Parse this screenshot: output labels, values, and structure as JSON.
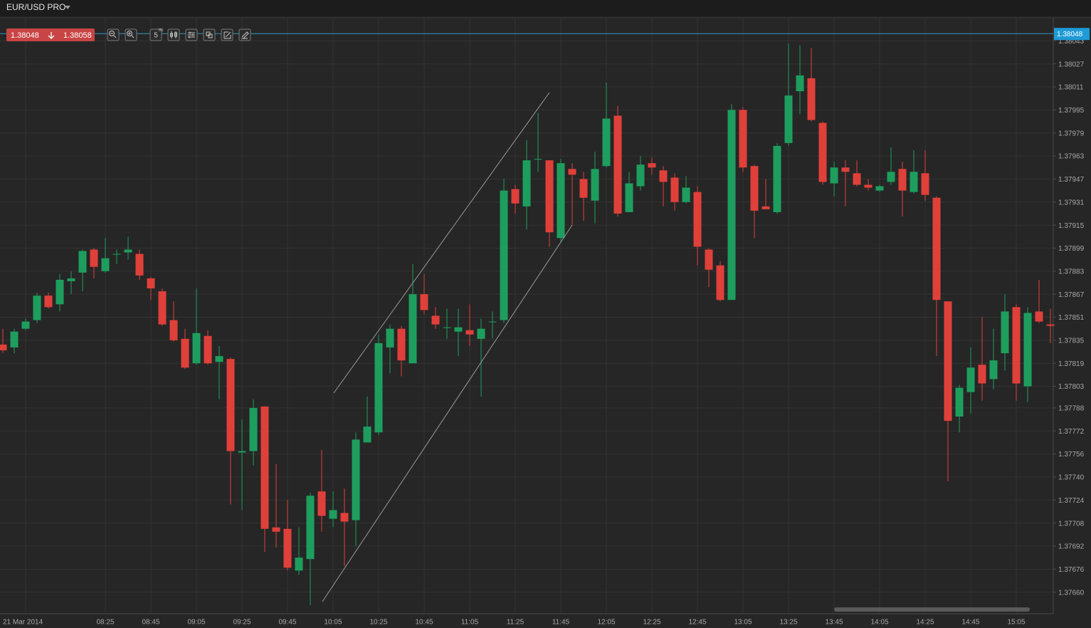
{
  "toolbar": {
    "interval": "5",
    "unit": "m"
  },
  "chart_data": {
    "type": "candlestick",
    "title": "EUR/USD PRO",
    "bid": 1.38048,
    "ask": 1.38058,
    "last_price": 1.38048,
    "up_color": "#1e9e5e",
    "down_color": "#e0403a",
    "grid": true,
    "categories": [
      null,
      null,
      "21 Mar 2014",
      null,
      null,
      null,
      null,
      null,
      null,
      "08:25",
      null,
      null,
      null,
      "08:45",
      null,
      null,
      null,
      "09:05",
      null,
      null,
      null,
      "09:25",
      null,
      null,
      null,
      "09:45",
      null,
      null,
      null,
      "10:05",
      null,
      null,
      null,
      "10:25",
      null,
      null,
      null,
      "10:45",
      null,
      null,
      null,
      "11:05",
      null,
      null,
      null,
      "11:25",
      null,
      null,
      null,
      "11:45",
      null,
      null,
      null,
      "12:05",
      null,
      null,
      null,
      "12:25",
      null,
      null,
      null,
      "12:45",
      null,
      null,
      null,
      "13:05",
      null,
      null,
      null,
      "13:25",
      null,
      null,
      null,
      "13:45",
      null,
      null,
      null,
      "14:05",
      null,
      null,
      null,
      "14:25",
      null,
      null,
      null,
      "14:45",
      null,
      null,
      null,
      "15:05",
      null,
      null,
      null
    ],
    "open": [
      1.37832,
      1.3783,
      1.37843,
      1.37849,
      1.37866,
      1.3786,
      1.37876,
      1.37882,
      1.37898,
      1.37883,
      1.37895,
      1.37896,
      1.37895,
      1.37878,
      1.37869,
      1.37849,
      1.37836,
      1.37819,
      1.37838,
      1.3782,
      1.37822,
      1.37757,
      1.37758,
      1.37789,
      1.37705,
      1.37704,
      1.37675,
      1.37683,
      1.3773,
      1.37711,
      1.37715,
      1.3771,
      1.37764,
      1.37771,
      1.3783,
      1.37843,
      1.37819,
      1.37867,
      1.37852,
      1.37844,
      1.37841,
      1.37842,
      1.37836,
      1.37848,
      1.37849,
      1.3794,
      1.37928,
      1.37961,
      1.3796,
      1.37906,
      1.37954,
      1.37947,
      1.37932,
      1.37956,
      1.37991,
      1.37924,
      1.37942,
      1.37958,
      1.37953,
      1.37948,
      1.37931,
      1.37938,
      1.37898,
      1.37887,
      1.37863,
      1.37995,
      1.37956,
      1.37928,
      1.37924,
      1.37972,
      1.38008,
      1.38017,
      1.37986,
      1.37944,
      1.37955,
      1.37951,
      1.37943,
      1.37939,
      1.37945,
      1.37954,
      1.37938,
      1.37951,
      1.37934,
      1.37862,
      1.37782,
      1.37799,
      1.37818,
      1.37808,
      1.37826,
      1.37858,
      1.37803,
      1.37855,
      1.37846
    ],
    "high": [
      1.37843,
      1.37843,
      1.3785,
      1.37868,
      1.37868,
      1.37881,
      1.37883,
      1.37898,
      1.37899,
      1.37906,
      1.37898,
      1.37907,
      1.37898,
      1.37879,
      1.37871,
      1.37862,
      1.37843,
      1.37871,
      1.37842,
      1.37831,
      1.37823,
      1.3778,
      1.37794,
      1.37789,
      1.37749,
      1.37724,
      1.37705,
      1.37729,
      1.37759,
      1.3773,
      1.37732,
      1.37771,
      1.37796,
      1.37839,
      1.37846,
      1.37845,
      1.37888,
      1.37881,
      1.37858,
      1.37857,
      1.37857,
      1.3786,
      1.3785,
      1.37855,
      1.37947,
      1.37943,
      1.37974,
      1.37993,
      1.3796,
      1.37961,
      1.37958,
      1.37952,
      1.37966,
      1.38014,
      1.37998,
      1.37952,
      1.37963,
      1.37962,
      1.37956,
      1.37951,
      1.37949,
      1.37942,
      1.37899,
      1.3789,
      1.37999,
      1.37997,
      1.37957,
      1.37947,
      1.37972,
      1.38041,
      1.3804,
      1.38038,
      1.37987,
      1.37959,
      1.3796,
      1.3796,
      1.37947,
      1.37943,
      1.37969,
      1.37959,
      1.37967,
      1.37967,
      1.37935,
      1.37862,
      1.37804,
      1.3783,
      1.37851,
      1.37843,
      1.37867,
      1.3786,
      1.37858,
      1.37877,
      1.37857
    ],
    "low": [
      1.37826,
      1.37826,
      1.37842,
      1.37847,
      1.37857,
      1.37855,
      1.37867,
      1.37869,
      1.37878,
      1.37882,
      1.37888,
      1.37891,
      1.37877,
      1.37863,
      1.37845,
      1.37834,
      1.37815,
      1.37818,
      1.37818,
      1.37794,
      1.37721,
      1.37717,
      1.37748,
      1.37688,
      1.37691,
      1.37675,
      1.37672,
      1.37651,
      1.37702,
      1.37705,
      1.37678,
      1.37692,
      1.37764,
      1.37769,
      1.37812,
      1.3781,
      1.37819,
      1.37853,
      1.37843,
      1.37836,
      1.37824,
      1.37831,
      1.37796,
      1.37836,
      1.37847,
      1.37923,
      1.37912,
      1.37952,
      1.379,
      1.37903,
      1.37915,
      1.37918,
      1.37916,
      1.37955,
      1.37921,
      1.37924,
      1.37939,
      1.3795,
      1.37928,
      1.37925,
      1.3793,
      1.37887,
      1.37872,
      1.37862,
      1.37863,
      1.37952,
      1.37906,
      1.37926,
      1.37923,
      1.3797,
      1.37992,
      1.37987,
      1.37943,
      1.37935,
      1.37928,
      1.37942,
      1.37939,
      1.37938,
      1.37943,
      1.37921,
      1.37937,
      1.37932,
      1.37824,
      1.37737,
      1.37771,
      1.37784,
      1.37793,
      1.37801,
      1.37814,
      1.37793,
      1.37792,
      1.37847,
      1.37833
    ],
    "close": [
      1.37828,
      1.37841,
      1.37848,
      1.37866,
      1.37858,
      1.37877,
      1.37878,
      1.37897,
      1.37886,
      1.37892,
      1.37895,
      1.37898,
      1.3788,
      1.37871,
      1.37846,
      1.37835,
      1.37816,
      1.3784,
      1.37819,
      1.37824,
      1.37758,
      1.37758,
      1.37788,
      1.37704,
      1.37702,
      1.37677,
      1.37684,
      1.37727,
      1.37713,
      1.37717,
      1.37709,
      1.37766,
      1.37775,
      1.37833,
      1.37843,
      1.37821,
      1.37867,
      1.37856,
      1.37846,
      1.37844,
      1.37844,
      1.37839,
      1.37843,
      1.37848,
      1.37939,
      1.3793,
      1.3796,
      1.37961,
      1.3791,
      1.37958,
      1.3795,
      1.37934,
      1.37954,
      1.37989,
      1.37923,
      1.37944,
      1.37957,
      1.37955,
      1.37945,
      1.37931,
      1.37941,
      1.379,
      1.37884,
      1.37863,
      1.37995,
      1.37955,
      1.37925,
      1.37926,
      1.3797,
      1.38005,
      1.38019,
      1.37988,
      1.37945,
      1.37955,
      1.37952,
      1.37943,
      1.37941,
      1.37942,
      1.37952,
      1.37939,
      1.37952,
      1.37936,
      1.37863,
      1.37779,
      1.37802,
      1.37816,
      1.37805,
      1.37821,
      1.37855,
      1.37805,
      1.37854,
      1.37848,
      1.37845
    ],
    "ylim": [
      1.37645,
      1.38059
    ],
    "yticks": [
      1.38043,
      1.38027,
      1.38011,
      1.37995,
      1.37979,
      1.37963,
      1.37947,
      1.37931,
      1.37915,
      1.37899,
      1.37883,
      1.37867,
      1.37851,
      1.37835,
      1.37819,
      1.37803,
      1.37788,
      1.37772,
      1.37756,
      {
        "value": 1.3774,
        "label": "1.37740"
      },
      1.37724,
      1.37708,
      1.37692,
      1.37676,
      {
        "value": 1.3766,
        "label": "1.37660"
      }
    ]
  }
}
